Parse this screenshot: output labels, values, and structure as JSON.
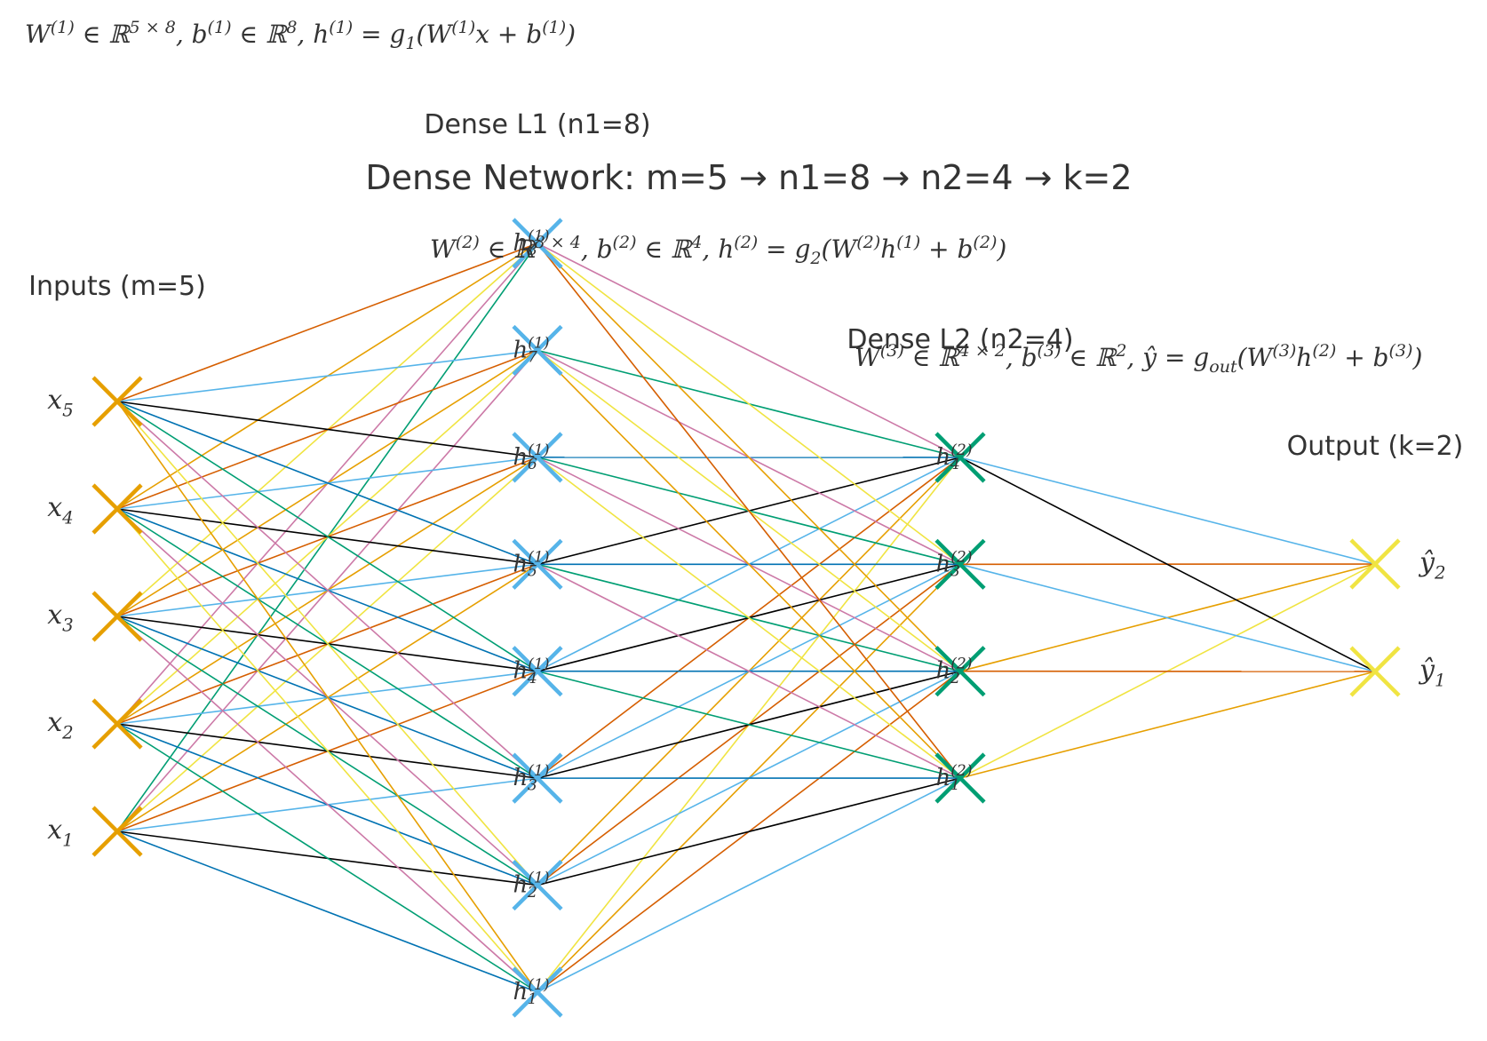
{
  "title": "Dense Network: m=5 → n1=8 → n2=4 → k=2",
  "layers": {
    "input": {
      "header": "Inputs (m=5)",
      "count": 5,
      "color": "#E69F00"
    },
    "dense1": {
      "header": "Dense L1 (n1=8)",
      "count": 8,
      "color": "#56B4E9"
    },
    "dense2": {
      "header": "Dense L2 (n2=4)",
      "count": 4,
      "color": "#009E73"
    },
    "output": {
      "header": "Output (k=2)",
      "count": 2,
      "color": "#F0E442"
    }
  },
  "equations": {
    "eq1": "W^(1) ∈ ℝ^5×8,  b^(1) ∈ ℝ^8,  h^(1) = g_1(W^(1)x + b^(1))",
    "eq2": "W^(2) ∈ ℝ^8×4,  b^(2) ∈ ℝ^4,  h^(2) = g_2(W^(2)h^(1) + b^(2))",
    "eq3": "W^(3) ∈ ℝ^4×2,  b^(3) ∈ ℝ^2,  ŷ = g_out(W^(3)h^(2) + b^(3))"
  },
  "edge_palette": [
    "#000000",
    "#CC79A7",
    "#D55E00",
    "#0072B2",
    "#F0E442",
    "#56B4E9",
    "#009E73",
    "#E69F00"
  ],
  "node_labels": {
    "input": [
      "x1",
      "x2",
      "x3",
      "x4",
      "x5"
    ],
    "dense1": [
      "h1(1)",
      "h2(1)",
      "h3(1)",
      "h4(1)",
      "h5(1)",
      "h6(1)",
      "h7(1)",
      "h8(1)"
    ],
    "dense2": [
      "h1(2)",
      "h2(2)",
      "h3(2)",
      "h4(2)"
    ],
    "output": [
      "ŷ1",
      "ŷ2"
    ]
  }
}
